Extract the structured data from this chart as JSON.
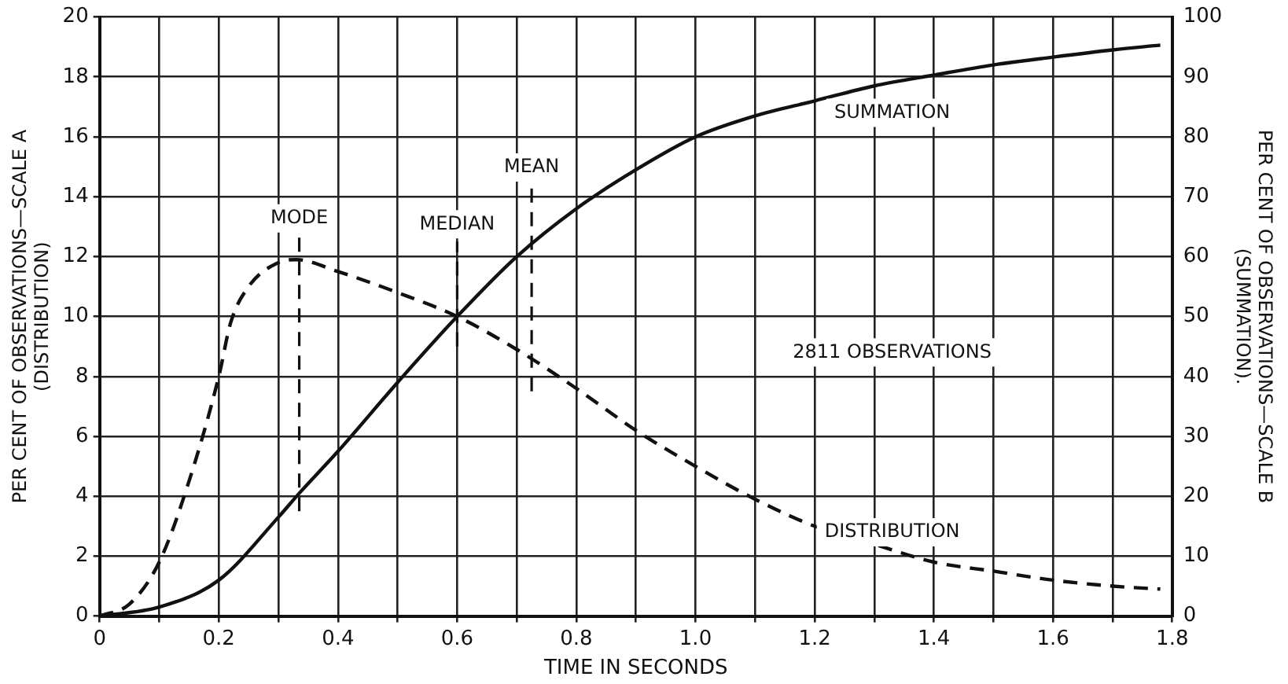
{
  "chart_data": {
    "type": "line",
    "xlabel": "TIME IN SECONDS",
    "ylabel": "PER CENT OF OBSERVATIONS—SCALE A\n(DISTRIBUTION)",
    "y2label": "PER CENT OF OBSERVATIONS—SCALE B\n(SUMMATION).",
    "xlim": [
      0,
      1.8
    ],
    "xticks": [
      0,
      {
        "value": 0.1,
        "label": null
      },
      0.2,
      {
        "value": 0.3,
        "label": null
      },
      0.4,
      {
        "value": 0.5,
        "label": null
      },
      0.6,
      {
        "value": 0.7,
        "label": null
      },
      0.8,
      {
        "value": 0.9,
        "label": null
      },
      {
        "value": 1.0,
        "label": "1.0"
      },
      {
        "value": 1.1,
        "label": null
      },
      1.2,
      {
        "value": 1.3,
        "label": null
      },
      1.4,
      {
        "value": 1.5,
        "label": null
      },
      1.6,
      {
        "value": 1.7,
        "label": null
      },
      1.8
    ],
    "ylim": [
      0,
      20
    ],
    "yticks": [
      0,
      2,
      4,
      6,
      8,
      10,
      12,
      14,
      16,
      18,
      20
    ],
    "y2lim": [
      0,
      100
    ],
    "y2ticks": [
      0,
      10,
      20,
      30,
      40,
      50,
      60,
      70,
      80,
      90,
      100
    ],
    "grid": true,
    "legend": false,
    "marker": "none",
    "series": [
      {
        "name": "DISTRIBUTION",
        "color": "#111111",
        "line_style": "dashed",
        "axis": "y",
        "x": [
          0,
          0.05,
          0.1,
          0.15,
          0.2,
          0.22,
          0.25,
          0.3,
          0.33,
          0.4,
          0.5,
          0.6,
          0.7,
          0.8,
          0.9,
          1.0,
          1.1,
          1.2,
          1.3,
          1.4,
          1.5,
          1.6,
          1.7,
          1.78
        ],
        "values": [
          0,
          0.4,
          1.8,
          4.5,
          8,
          9.8,
          11,
          11.8,
          11.9,
          11.5,
          10.8,
          10,
          8.9,
          7.6,
          6.2,
          5,
          3.9,
          3,
          2.4,
          1.8,
          1.5,
          1.2,
          1.0,
          0.9
        ]
      },
      {
        "name": "SUMMATION",
        "color": "#111111",
        "line_style": "solid",
        "axis": "y2",
        "x": [
          0,
          0.1,
          0.2,
          0.3,
          0.335,
          0.4,
          0.5,
          0.6,
          0.7,
          0.8,
          0.9,
          1.0,
          1.1,
          1.2,
          1.3,
          1.4,
          1.5,
          1.6,
          1.7,
          1.78
        ],
        "values": [
          0,
          1.5,
          6,
          16.5,
          20.5,
          27.5,
          39,
          50,
          60,
          68,
          74.5,
          80,
          83.5,
          86,
          88.5,
          90.3,
          92,
          93.3,
          94.5,
          95.3
        ]
      }
    ],
    "ref_lines": [
      {
        "axis": "x",
        "value": 0.335,
        "label": "MODE",
        "line_style": "dashed"
      },
      {
        "axis": "x",
        "value": 0.6,
        "label": "MEDIAN",
        "line_style": "dashed"
      },
      {
        "axis": "x",
        "value": 0.725,
        "label": "MEAN",
        "line_style": "dashed"
      }
    ],
    "annotations": [
      "2811 OBSERVATIONS"
    ]
  }
}
